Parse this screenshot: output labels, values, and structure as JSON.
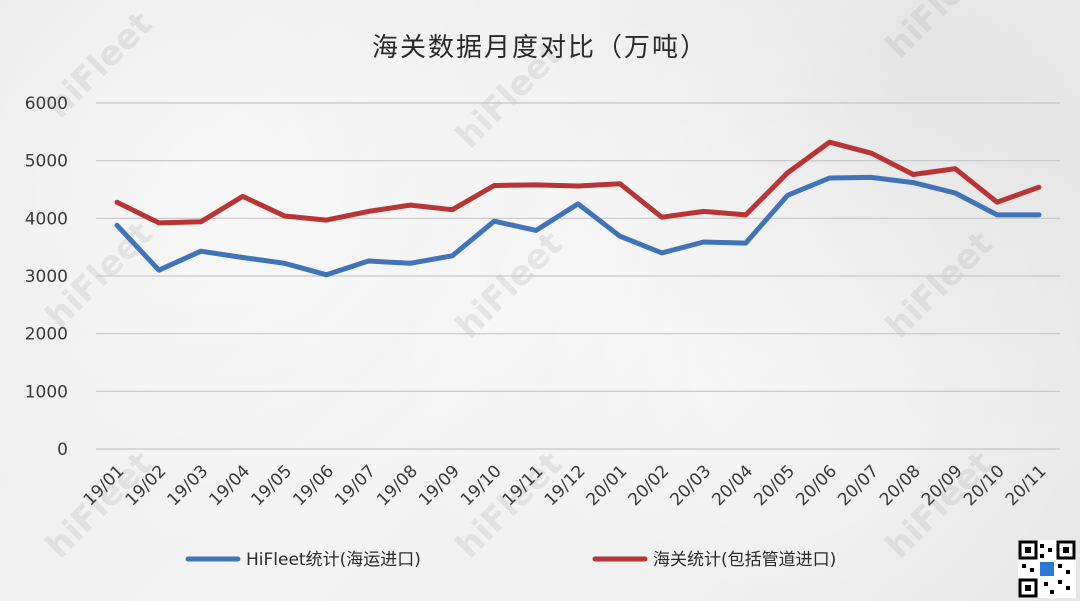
{
  "chart_data": {
    "type": "line",
    "title": "海关数据月度对比（万吨）",
    "categories": [
      "19/01",
      "19/02",
      "19/03",
      "19/04",
      "19/05",
      "19/06",
      "19/07",
      "19/08",
      "19/09",
      "19/10",
      "19/11",
      "19/12",
      "20/01",
      "20/02",
      "20/03",
      "20/04",
      "20/05",
      "20/06",
      "20/07",
      "20/08",
      "20/09",
      "20/10",
      "20/11"
    ],
    "ylim": [
      0,
      6000
    ],
    "yticks": [
      "0",
      "1000",
      "2000",
      "3000",
      "4000",
      "5000",
      "6000"
    ],
    "grid": true,
    "legend_position": "bottom",
    "series": [
      {
        "name": "HiFleet统计(海运进口)",
        "color": "#3f74b8",
        "values": [
          3880,
          3100,
          3430,
          3320,
          3220,
          3020,
          3260,
          3220,
          3350,
          3950,
          3790,
          4250,
          3690,
          3400,
          3590,
          3570,
          4400,
          4700,
          4710,
          4620,
          4440,
          4060,
          4060
        ]
      },
      {
        "name": "海关统计(包括管道进口)",
        "color": "#b93435",
        "values": [
          4280,
          3920,
          3940,
          4380,
          4040,
          3970,
          4120,
          4230,
          4150,
          4570,
          4580,
          4560,
          4600,
          4020,
          4120,
          4060,
          4790,
          5320,
          5130,
          4760,
          4860,
          4280,
          4540
        ]
      }
    ]
  },
  "watermark": {
    "text": "hiFleet"
  },
  "icons": {
    "qr": "qr-code-icon"
  }
}
